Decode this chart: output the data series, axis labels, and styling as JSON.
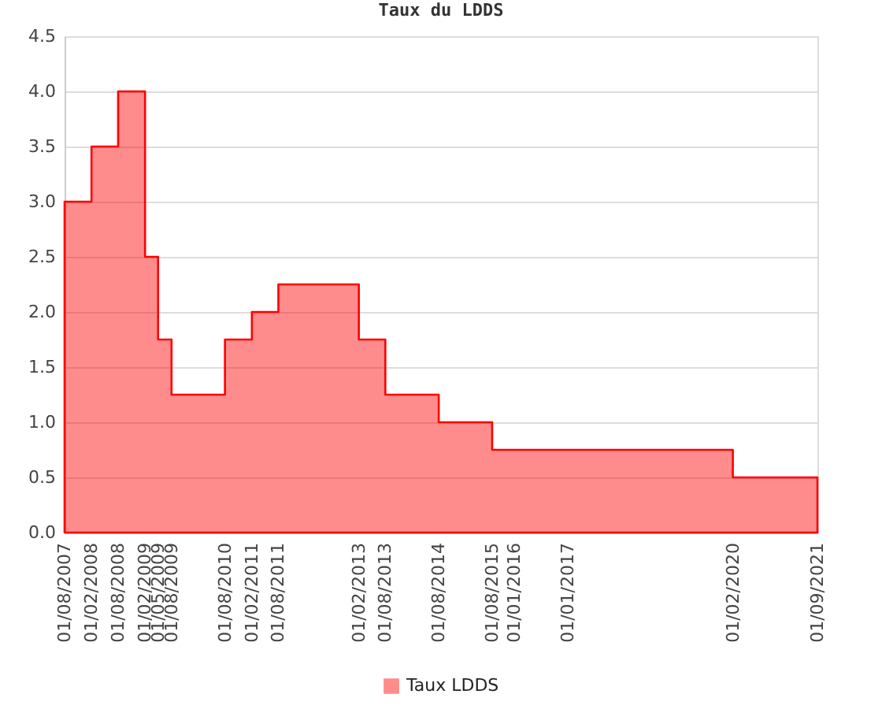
{
  "chart_data": {
    "type": "area",
    "title": "Taux du LDDS",
    "x": [
      "2007-08-01",
      "2008-02-01",
      "2008-08-01",
      "2009-02-01",
      "2009-05-01",
      "2009-08-01",
      "2010-08-01",
      "2011-02-01",
      "2011-08-01",
      "2013-02-01",
      "2013-08-01",
      "2014-08-01",
      "2015-08-01",
      "2016-01-01",
      "2017-01-01",
      "2020-02-01",
      "2021-09-01"
    ],
    "series": [
      {
        "name": "Taux LDDS",
        "color": "#ff0000",
        "values": [
          3.0,
          3.5,
          4.0,
          2.5,
          1.75,
          1.25,
          1.75,
          2.0,
          2.25,
          1.75,
          1.25,
          1.0,
          0.75,
          0.75,
          0.75,
          0.5,
          0.5
        ]
      }
    ],
    "xlim": [
      "2007-08-01",
      "2021-09-01"
    ],
    "xticks": [
      {
        "value": "2007-08-01",
        "label": "01/08/2007"
      },
      {
        "value": "2008-02-01",
        "label": "01/02/2008"
      },
      {
        "value": "2008-08-01",
        "label": "01/08/2008"
      },
      {
        "value": "2009-02-01",
        "label": "01/02/2009"
      },
      {
        "value": "2009-05-01",
        "label": "01/05/2009"
      },
      {
        "value": "2009-08-01",
        "label": "01/08/2009"
      },
      {
        "value": "2010-08-01",
        "label": "01/08/2010"
      },
      {
        "value": "2011-02-01",
        "label": "01/02/2011"
      },
      {
        "value": "2011-08-01",
        "label": "01/08/2011"
      },
      {
        "value": "2013-02-01",
        "label": "01/02/2013"
      },
      {
        "value": "2013-08-01",
        "label": "01/08/2013"
      },
      {
        "value": "2014-08-01",
        "label": "01/08/2014"
      },
      {
        "value": "2015-08-01",
        "label": "01/08/2015"
      },
      {
        "value": "2016-01-01",
        "label": "01/01/2016"
      },
      {
        "value": "2017-01-01",
        "label": "01/01/2017"
      },
      {
        "value": "2020-02-01",
        "label": "01/02/2020"
      },
      {
        "value": "2021-09-01",
        "label": "01/09/2021"
      }
    ],
    "ylim": [
      0,
      4.5
    ],
    "yticks": [
      {
        "value": 0,
        "label": "0.0"
      },
      0.5,
      {
        "value": 1,
        "label": "1.0"
      },
      1.5,
      {
        "value": 2,
        "label": "2.0"
      },
      2.5,
      {
        "value": 3,
        "label": "3.0"
      },
      3.5,
      {
        "value": 4,
        "label": "4.0"
      },
      4.5
    ],
    "grid": "y",
    "legend": "bottom"
  }
}
